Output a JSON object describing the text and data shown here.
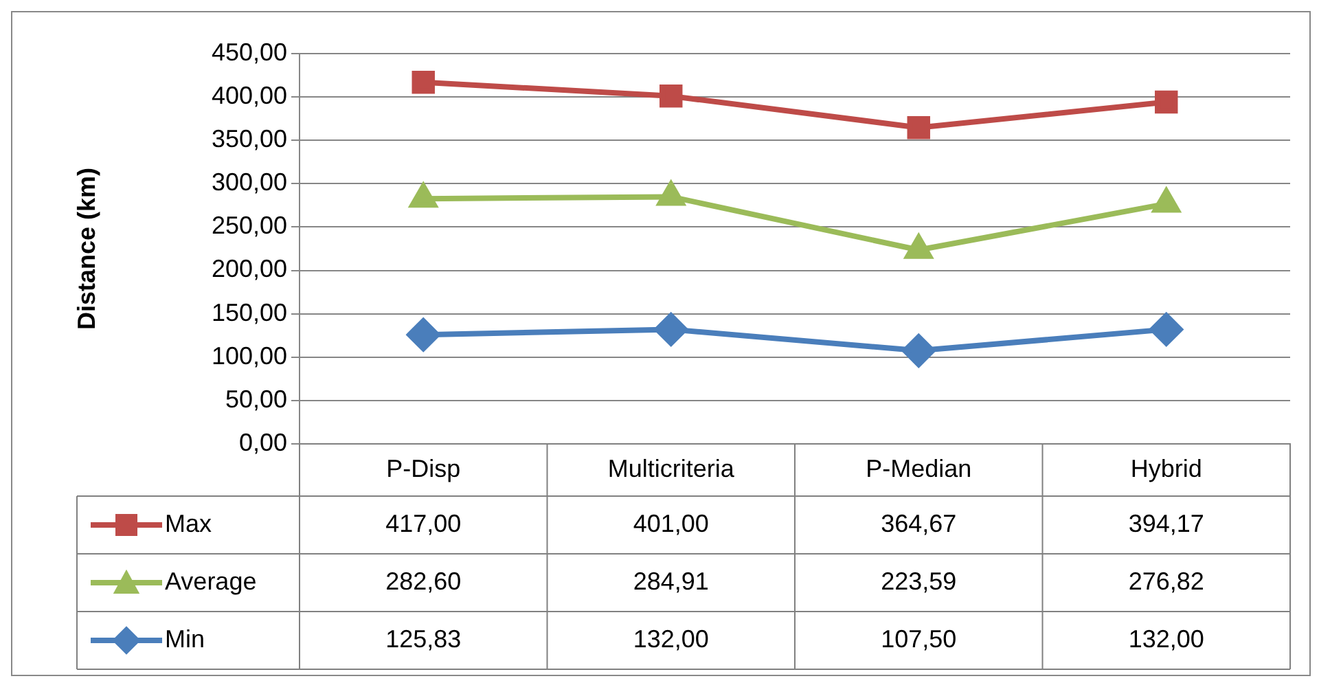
{
  "chart_data": {
    "type": "line",
    "ylabel": "Distance (km)",
    "categories": [
      "P-Disp",
      "Multicriteria",
      "P-Median",
      "Hybrid"
    ],
    "series": [
      {
        "name": "Max",
        "color": "#be4b48",
        "marker": "square",
        "values": [
          417.0,
          401.0,
          364.67,
          394.17
        ],
        "value_labels": [
          "417,00",
          "401,00",
          "364,67",
          "394,17"
        ]
      },
      {
        "name": "Average",
        "color": "#9bbb59",
        "marker": "triangle",
        "values": [
          282.6,
          284.91,
          223.59,
          276.82
        ],
        "value_labels": [
          "282,60",
          "284,91",
          "223,59",
          "276,82"
        ]
      },
      {
        "name": "Min",
        "color": "#4a7ebb",
        "marker": "diamond",
        "values": [
          125.83,
          132.0,
          107.5,
          132.0
        ],
        "value_labels": [
          "125,83",
          "132,00",
          "107,50",
          "132,00"
        ]
      }
    ],
    "ylim": [
      0,
      450
    ],
    "yticks": [
      {
        "value": 0,
        "label": "0,00"
      },
      {
        "value": 50,
        "label": "50,00"
      },
      {
        "value": 100,
        "label": "100,00"
      },
      {
        "value": 150,
        "label": "150,00"
      },
      {
        "value": 200,
        "label": "200,00"
      },
      {
        "value": 250,
        "label": "250,00"
      },
      {
        "value": 300,
        "label": "300,00"
      },
      {
        "value": 350,
        "label": "350,00"
      },
      {
        "value": 400,
        "label": "400,00"
      },
      {
        "value": 450,
        "label": "450,00"
      }
    ],
    "grid": "y",
    "legend": "bottom",
    "line_style": "solid"
  }
}
